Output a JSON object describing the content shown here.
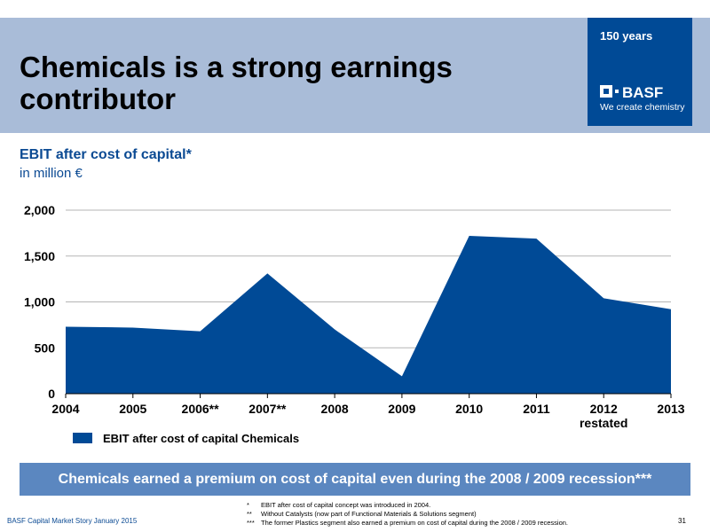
{
  "header": {
    "title": "Chemicals is a strong earnings contributor",
    "years": "150 years",
    "brand_name": "BASF",
    "tagline": "We create chemistry"
  },
  "chart_title": "EBIT after cost of capital*",
  "chart_unit": "in million €",
  "chart_data": {
    "type": "area",
    "categories": [
      "2004",
      "2005",
      "2006**",
      "2007**",
      "2008",
      "2009",
      "2010",
      "2011",
      "2012 restated",
      "2013"
    ],
    "category_labels": [
      [
        "2004"
      ],
      [
        "2005"
      ],
      [
        "2006**"
      ],
      [
        "2007**"
      ],
      [
        "2008"
      ],
      [
        "2009"
      ],
      [
        "2010"
      ],
      [
        "2011"
      ],
      [
        "2012",
        "restated"
      ],
      [
        "2013"
      ]
    ],
    "series": [
      {
        "name": "EBIT after cost of capital Chemicals",
        "values": [
          730,
          720,
          680,
          1310,
          700,
          190,
          1720,
          1690,
          1040,
          920
        ]
      }
    ],
    "ylim": [
      0,
      2000
    ],
    "yticks": [
      0,
      500,
      1000,
      1500,
      2000
    ],
    "ytick_labels": [
      "0",
      "500",
      "1,000",
      "1,500",
      "2,000"
    ],
    "grid": true,
    "legend_position": "bottom-left",
    "color": "#004a96"
  },
  "legend": {
    "label": "EBIT after cost of capital Chemicals"
  },
  "banner": "Chemicals earned a premium on cost of capital even during the 2008 / 2009 recession***",
  "footer": {
    "left": "BASF Capital Market Story January 2015",
    "page": "31",
    "footnotes": [
      {
        "mark": "*",
        "text": "EBIT after cost of capital concept was introduced in 2004."
      },
      {
        "mark": "**",
        "text": "Without Catalysts (now part of Functional Materials & Solutions segment)"
      },
      {
        "mark": "***",
        "text": "The former Plastics segment also earned a premium on cost of capital during the 2008 / 2009 recession."
      }
    ]
  }
}
